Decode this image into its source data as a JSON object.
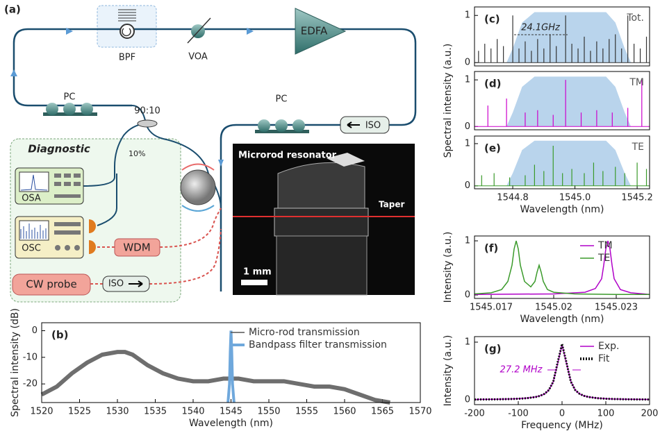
{
  "diagram": {
    "panel": "(a)",
    "bpf": "BPF",
    "voa": "VOA",
    "edfa": "EDFA",
    "pc_left": "PC",
    "pc_right": "PC",
    "coupler": "90:10",
    "iso_loop": "ISO",
    "tap": "10%",
    "diagnostic": "Diagnostic",
    "osa": "OSA",
    "osc": "OSC",
    "wdm": "WDM",
    "cw_probe": "CW probe",
    "iso_probe": "ISO",
    "photo_title": "Microrod resonator",
    "taper": "Taper",
    "scale": "1 mm"
  },
  "chart_data": [
    {
      "type": "line",
      "panel": "(b)",
      "xlabel": "Wavelength (nm)",
      "ylabel": "Spectral intensity (dB)",
      "xlim": [
        1520,
        1570
      ],
      "xticks": [
        1520,
        1525,
        1530,
        1535,
        1540,
        1545,
        1550,
        1555,
        1560,
        1565,
        1570
      ],
      "ylim": [
        -27,
        3
      ],
      "yticks": [
        0,
        -10,
        -20
      ],
      "legend": "upper right",
      "series": [
        {
          "name": "Micro-rod transmission",
          "color": "#555555",
          "linestyle": "band",
          "x": [
            1520,
            1522,
            1524,
            1526,
            1528,
            1530,
            1531,
            1532,
            1534,
            1536,
            1538,
            1540,
            1542,
            1544,
            1546,
            1548,
            1550,
            1552,
            1554,
            1556,
            1558,
            1560,
            1562,
            1564,
            1566
          ],
          "values": [
            -24,
            -21,
            -16,
            -12,
            -9,
            -8,
            -8,
            -9,
            -13,
            -16,
            -18,
            -19,
            -19,
            -18,
            -18,
            -19,
            -19,
            -19,
            -20,
            -21,
            -21,
            -22,
            -24,
            -26,
            -27
          ]
        },
        {
          "name": "Bandpass filter transmission",
          "color": "#6fa8dc",
          "linestyle": "thick",
          "x": [
            1544.6,
            1544.8,
            1544.9,
            1545,
            1545.1,
            1545.2,
            1545.4
          ],
          "values": [
            -27,
            -20,
            -8,
            0,
            -8,
            -20,
            -27
          ]
        }
      ]
    },
    {
      "type": "stem",
      "panel": "(c)",
      "annotation": "24.1GHz",
      "xlim": [
        1544.677,
        1545.24
      ],
      "ylim": [
        -0.07,
        1.18
      ],
      "yticks": [
        0,
        1
      ],
      "filter": {
        "color": "#b9d4ec",
        "x": [
          1544.78,
          1544.8,
          1544.83,
          1544.87,
          1545.1,
          1545.13,
          1545.16,
          1545.18
        ],
        "values": [
          0,
          0.3,
          0.85,
          1.07,
          1.07,
          0.85,
          0.3,
          0
        ]
      },
      "series": [
        {
          "name": "Tot.",
          "color": "#333333",
          "x": [
            1544.69,
            1544.71,
            1544.73,
            1544.75,
            1544.77,
            1544.8,
            1544.82,
            1544.84,
            1544.86,
            1544.88,
            1544.9,
            1544.92,
            1544.94,
            1544.97,
            1544.99,
            1545.01,
            1545.03,
            1545.05,
            1545.07,
            1545.09,
            1545.11,
            1545.13,
            1545.15,
            1545.17,
            1545.19,
            1545.21,
            1545.23
          ],
          "values": [
            0.25,
            0.4,
            0.3,
            0.5,
            0.35,
            1.0,
            0.3,
            0.45,
            0.25,
            0.5,
            0.3,
            0.6,
            0.35,
            1.0,
            0.4,
            0.3,
            0.55,
            0.25,
            0.45,
            0.3,
            0.5,
            0.6,
            0.3,
            1.0,
            0.4,
            0.3,
            0.55
          ]
        }
      ]
    },
    {
      "type": "stem",
      "panel": "(d)",
      "ylabel": "Spectral intensity (a.u.)",
      "xlim": [
        1544.677,
        1545.24
      ],
      "ylim": [
        -0.07,
        1.18
      ],
      "yticks": [
        0,
        1
      ],
      "filter": {
        "color": "#b9d4ec",
        "x": [
          1544.78,
          1544.8,
          1544.83,
          1544.87,
          1545.1,
          1545.13,
          1545.16,
          1545.18
        ],
        "values": [
          0,
          0.3,
          0.85,
          1.07,
          1.07,
          0.85,
          0.3,
          0
        ]
      },
      "series": [
        {
          "name": "TM",
          "color": "#cc00cc",
          "x": [
            1544.72,
            1544.78,
            1544.84,
            1544.88,
            1544.93,
            1544.97,
            1545.02,
            1545.07,
            1545.12,
            1545.17,
            1545.215
          ],
          "values": [
            0.45,
            0.6,
            0.3,
            0.35,
            0.25,
            1.0,
            0.3,
            0.35,
            0.3,
            0.4,
            1.0
          ]
        }
      ]
    },
    {
      "type": "stem",
      "panel": "(e)",
      "xlabel": "Wavelength (nm)",
      "xlim": [
        1544.677,
        1545.24
      ],
      "xticks": [
        1544.8,
        {
          "value": 1545,
          "label": "1545.0"
        },
        1545.2
      ],
      "ylim": [
        -0.07,
        1.18
      ],
      "yticks": [
        0,
        1
      ],
      "filter": {
        "color": "#b9d4ec",
        "x": [
          1544.78,
          1544.8,
          1544.83,
          1544.87,
          1545.1,
          1545.13,
          1545.16,
          1545.18
        ],
        "values": [
          0,
          0.3,
          0.85,
          1.07,
          1.07,
          0.85,
          0.3,
          0
        ]
      },
      "series": [
        {
          "name": "TE",
          "color": "#3a9a2a",
          "x": [
            1544.7,
            1544.74,
            1544.79,
            1544.84,
            1544.87,
            1544.9,
            1544.93,
            1544.96,
            1544.99,
            1545.03,
            1545.06,
            1545.09,
            1545.13,
            1545.16,
            1545.2,
            1545.23
          ],
          "values": [
            0.25,
            0.3,
            0.2,
            0.25,
            0.5,
            0.35,
            0.95,
            0.3,
            0.4,
            0.3,
            0.55,
            0.35,
            0.45,
            0.3,
            0.55,
            0.4
          ]
        }
      ]
    },
    {
      "type": "line",
      "panel": "(f)",
      "xlabel": "Wavelength (nm)",
      "ylabel": "Intensity (a.u.)",
      "xlim": [
        1545.0162,
        1545.0246
      ],
      "xticks": [
        1545.017,
        1545.02,
        1545.023
      ],
      "ylim": [
        -0.064,
        1.09
      ],
      "yticks": [
        0,
        1
      ],
      "legend": "upper right",
      "series": [
        {
          "name": "TM",
          "color": "#b000c8",
          "x": [
            1545.0162,
            1545.02,
            1545.0215,
            1545.022,
            1545.0223,
            1545.0224,
            1545.0225,
            1545.0226,
            1545.0227,
            1545.0228,
            1545.0229,
            1545.0232,
            1545.0237,
            1545.0246
          ],
          "values": [
            0.01,
            0.02,
            0.05,
            0.12,
            0.3,
            0.55,
            0.85,
            1.0,
            0.85,
            0.55,
            0.3,
            0.1,
            0.04,
            0.01
          ]
        },
        {
          "name": "TE",
          "color": "#3a9a2a",
          "x": [
            1545.0162,
            1545.017,
            1545.0175,
            1545.0178,
            1545.018,
            1545.0181,
            1545.0182,
            1545.0183,
            1545.0184,
            1545.0186,
            1545.0189,
            1545.0191,
            1545.0192,
            1545.0193,
            1545.0194,
            1545.0195,
            1545.0197,
            1545.02,
            1545.021,
            1545.023,
            1545.0246
          ],
          "values": [
            0.02,
            0.04,
            0.1,
            0.25,
            0.55,
            0.85,
            1.0,
            0.85,
            0.55,
            0.25,
            0.15,
            0.25,
            0.42,
            0.55,
            0.42,
            0.25,
            0.1,
            0.05,
            0.02,
            0.01,
            0.01
          ]
        }
      ]
    },
    {
      "type": "line",
      "panel": "(g)",
      "annotation": "27.2 MHz",
      "xlabel": "Frequency (MHz)",
      "ylabel": "Intensity (a.u.)",
      "xlim": [
        -200,
        200
      ],
      "xticks": [
        -200,
        -100,
        0,
        100,
        200
      ],
      "ylim": [
        -0.084,
        1.096
      ],
      "yticks": [
        0,
        1
      ],
      "legend": "upper right",
      "series": [
        {
          "name": "Exp.",
          "color": "#b000c8",
          "linestyle": "solid",
          "x": [
            -200,
            -150,
            -120,
            -100,
            -80,
            -60,
            -50,
            -40,
            -30,
            -20,
            -10,
            0,
            10,
            20,
            30,
            40,
            50,
            60,
            80,
            100,
            120,
            150,
            200
          ],
          "values": [
            0.006,
            0.009,
            0.014,
            0.02,
            0.03,
            0.05,
            0.07,
            0.1,
            0.17,
            0.31,
            0.63,
            0.95,
            0.64,
            0.32,
            0.17,
            0.1,
            0.07,
            0.05,
            0.03,
            0.02,
            0.013,
            0.009,
            0.006
          ]
        },
        {
          "name": "Fit",
          "color": "#111111",
          "linestyle": "dotted",
          "x": [
            -200,
            -150,
            -120,
            -100,
            -80,
            -60,
            -50,
            -40,
            -30,
            -20,
            -10,
            0,
            10,
            20,
            30,
            40,
            50,
            60,
            80,
            100,
            120,
            150,
            200
          ],
          "values": [
            0.005,
            0.008,
            0.013,
            0.018,
            0.028,
            0.049,
            0.069,
            0.104,
            0.17,
            0.316,
            0.649,
            0.97,
            0.649,
            0.316,
            0.17,
            0.104,
            0.069,
            0.049,
            0.028,
            0.018,
            0.013,
            0.008,
            0.005
          ]
        }
      ]
    }
  ]
}
